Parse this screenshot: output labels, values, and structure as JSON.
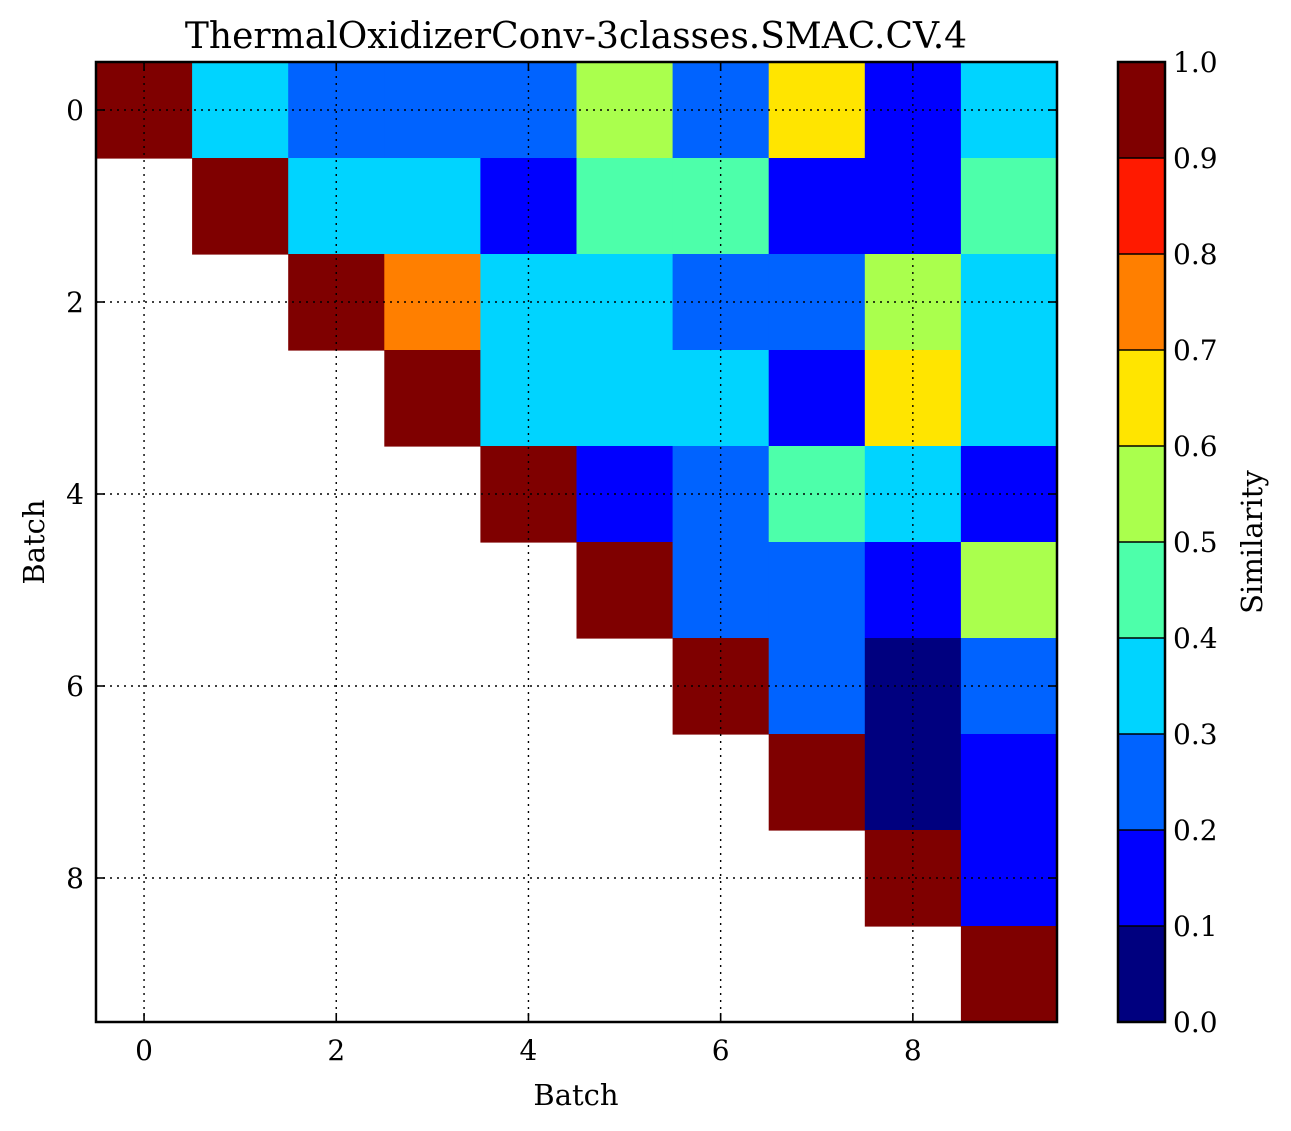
{
  "chart_data": {
    "type": "heatmap",
    "title": "ThermalOxidizerConv-3classes.SMAC.CV.4",
    "xlabel": "Batch",
    "ylabel": "Batch",
    "colorbar_label": "Similarity",
    "x": [
      0,
      1,
      2,
      3,
      4,
      5,
      6,
      7,
      8,
      9
    ],
    "y": [
      0,
      1,
      2,
      3,
      4,
      5,
      6,
      7,
      8,
      9
    ],
    "x_ticks": [
      "0",
      "2",
      "4",
      "6",
      "8"
    ],
    "y_ticks": [
      "0",
      "2",
      "4",
      "6",
      "8"
    ],
    "colorbar_ticks": [
      "0.0",
      "0.1",
      "0.2",
      "0.3",
      "0.4",
      "0.5",
      "0.6",
      "0.7",
      "0.8",
      "0.9",
      "1.0"
    ],
    "value_range": [
      0,
      1
    ],
    "grid": true,
    "matrix_upper_triangle": [
      [
        1.0,
        0.35,
        0.25,
        0.25,
        0.25,
        0.55,
        0.25,
        0.65,
        0.15,
        0.35
      ],
      [
        null,
        1.0,
        0.35,
        0.35,
        0.15,
        0.45,
        0.45,
        0.15,
        0.15,
        0.45
      ],
      [
        null,
        null,
        1.0,
        0.75,
        0.35,
        0.35,
        0.25,
        0.25,
        0.55,
        0.35
      ],
      [
        null,
        null,
        null,
        1.0,
        0.35,
        0.35,
        0.35,
        0.15,
        0.65,
        0.35
      ],
      [
        null,
        null,
        null,
        null,
        1.0,
        0.15,
        0.25,
        0.45,
        0.35,
        0.15
      ],
      [
        null,
        null,
        null,
        null,
        null,
        1.0,
        0.25,
        0.25,
        0.15,
        0.55
      ],
      [
        null,
        null,
        null,
        null,
        null,
        null,
        1.0,
        0.25,
        0.05,
        0.25
      ],
      [
        null,
        null,
        null,
        null,
        null,
        null,
        null,
        1.0,
        0.05,
        0.15
      ],
      [
        null,
        null,
        null,
        null,
        null,
        null,
        null,
        null,
        1.0,
        0.15
      ],
      [
        null,
        null,
        null,
        null,
        null,
        null,
        null,
        null,
        null,
        1.0
      ]
    ],
    "colormap": [
      "#00007f",
      "#0000ff",
      "#0063ff",
      "#00d4ff",
      "#4dffaa",
      "#aaff4d",
      "#ffe500",
      "#ff7f00",
      "#ff1a00",
      "#7f0000"
    ]
  }
}
